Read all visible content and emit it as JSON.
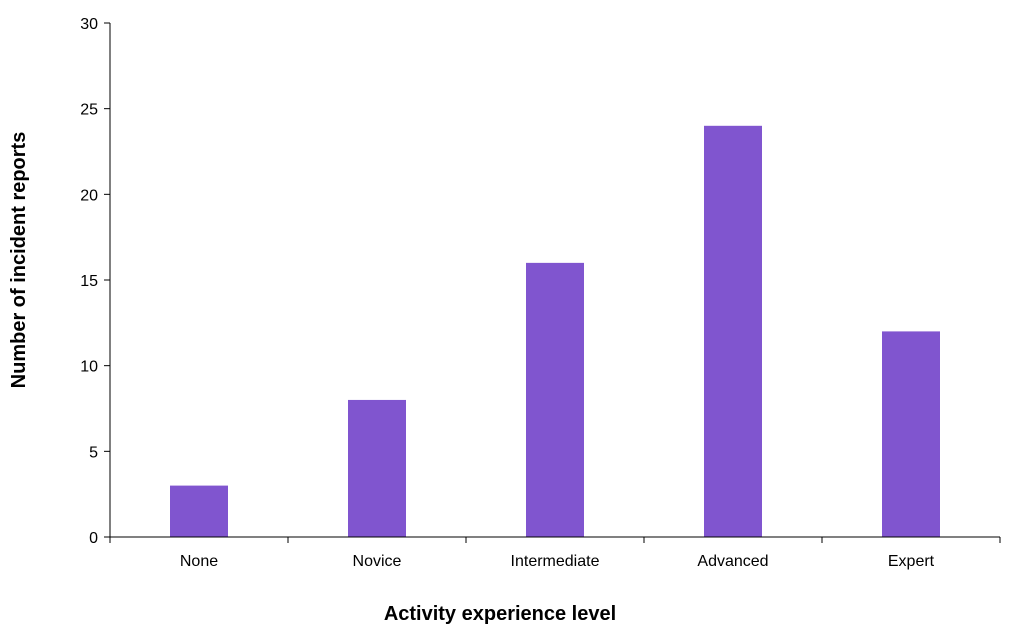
{
  "chart_data": {
    "type": "bar",
    "categories": [
      "None",
      "Novice",
      "Intermediate",
      "Advanced",
      "Expert"
    ],
    "values": [
      3,
      8,
      16,
      24,
      12
    ],
    "title": "",
    "xlabel": "Activity experience level",
    "ylabel": "Number of incident reports",
    "ylim": [
      0,
      30
    ],
    "yticks": [
      0,
      5,
      10,
      15,
      20,
      25,
      30
    ],
    "grid": false,
    "legend": "none",
    "bar_color": "#8055CF",
    "axis_color": "#000000"
  }
}
